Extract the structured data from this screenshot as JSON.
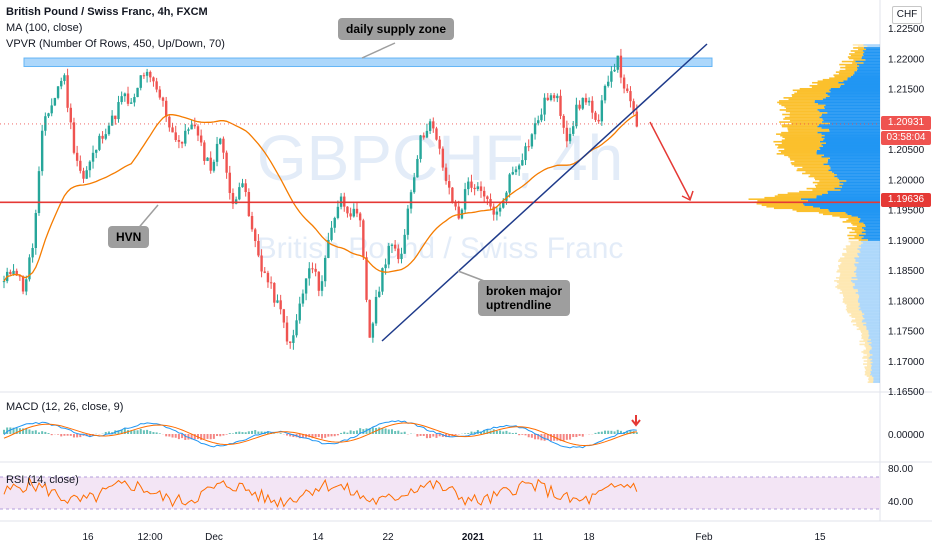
{
  "header": {
    "symbol_line": "British Pound / Swiss Franc, 4h, FXCM",
    "ma_line": "MA (100, close)",
    "vpvr_line": "VPVR (Number Of Rows, 450, Up/Down, 70)",
    "currency": "CHF"
  },
  "watermark": {
    "symbol": "GBPCHF, 4h",
    "name": "British Pound / Swiss Franc"
  },
  "annotations": {
    "supply_zone": "daily supply zone",
    "hvn": "HVN",
    "trendline": "broken major\nuptrendline"
  },
  "price_axis": {
    "ticks": [
      "1.22500",
      "1.22000",
      "1.21500",
      "1.21000",
      "1.20500",
      "1.20000",
      "1.19500",
      "1.19000",
      "1.18500",
      "1.18000",
      "1.17500",
      "1.17000",
      "1.16500"
    ],
    "last_price": "1.20931",
    "countdown": "03:58:04",
    "level_price": "1.19636"
  },
  "time_axis": [
    "16",
    "12:00",
    "Dec",
    "14",
    "22",
    "2021",
    "11",
    "18",
    "Feb",
    "15"
  ],
  "macd": {
    "label": "MACD (12, 26, close, 9)",
    "tick": "0.00000"
  },
  "rsi": {
    "label": "RSI (14, close)",
    "ticks": [
      "80.00",
      "40.00"
    ]
  },
  "colors": {
    "up": "#26a69a",
    "down": "#ef5350",
    "ma": "#f57c00",
    "level": "#e53935",
    "trendline": "#1e3a8a",
    "zone": "#90caf9",
    "vp_up": "#2196f3",
    "vp_down": "#fbc02d",
    "macd_line": "#2196f3",
    "signal_line": "#ff6d00",
    "rsi_line": "#ff6d00",
    "rsi_band": "#f3e5f5"
  },
  "chart_data": {
    "type": "candlestick",
    "title": "British Pound / Swiss Franc, 4h, FXCM",
    "ylim": [
      1.165,
      1.227
    ],
    "levels": {
      "horizontal_support": 1.19636,
      "supply_zone": [
        1.2188,
        1.2202
      ]
    },
    "series_path_prices": [
      1.183,
      1.186,
      1.182,
      1.19,
      1.21,
      1.213,
      1.218,
      1.206,
      1.2,
      1.204,
      1.208,
      1.21,
      1.214,
      1.212,
      1.218,
      1.216,
      1.213,
      1.208,
      1.206,
      1.21,
      1.205,
      1.202,
      1.208,
      1.195,
      1.201,
      1.192,
      1.186,
      1.182,
      1.178,
      1.172,
      1.18,
      1.186,
      1.182,
      1.192,
      1.197,
      1.195,
      1.193,
      1.174,
      1.183,
      1.19,
      1.186,
      1.197,
      1.206,
      1.21,
      1.205,
      1.198,
      1.194,
      1.2,
      1.198,
      1.196,
      1.194,
      1.2,
      1.203,
      1.206,
      1.21,
      1.214,
      1.213,
      1.207,
      1.212,
      1.214,
      1.208,
      1.217,
      1.22,
      1.214,
      1.2093
    ]
  }
}
